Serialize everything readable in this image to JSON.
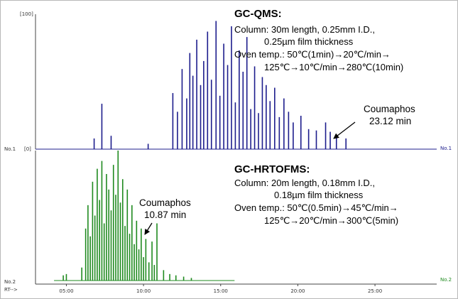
{
  "chart_data": [
    {
      "type": "line",
      "title": "GC-QMS:",
      "method_lines": [
        "Column: 30m length, 0.25mm I.D.,",
        "0.25µm film thickness",
        "Oven temp.: 50℃(1min)→20℃/min→",
        "125℃→10℃/min→280℃(10min)"
      ],
      "trace_label_left": "No.1",
      "trace_label_right": "No.1",
      "y_top_label": "[100]",
      "y_bottom_label": "[0]",
      "ylim": [
        0,
        100
      ],
      "xlim": [
        3.0,
        29.0
      ],
      "color": "#1c1c8c",
      "annotation": {
        "compound": "Coumaphos",
        "rt": "23.12 min",
        "x": 23.12
      },
      "peaks": [
        {
          "x": 6.8,
          "y": 8
        },
        {
          "x": 7.3,
          "y": 34
        },
        {
          "x": 7.9,
          "y": 10
        },
        {
          "x": 10.3,
          "y": 4
        },
        {
          "x": 11.9,
          "y": 42
        },
        {
          "x": 12.2,
          "y": 28
        },
        {
          "x": 12.5,
          "y": 60
        },
        {
          "x": 12.8,
          "y": 38
        },
        {
          "x": 13.0,
          "y": 72
        },
        {
          "x": 13.2,
          "y": 55
        },
        {
          "x": 13.45,
          "y": 82
        },
        {
          "x": 13.7,
          "y": 48
        },
        {
          "x": 13.9,
          "y": 66
        },
        {
          "x": 14.15,
          "y": 88
        },
        {
          "x": 14.4,
          "y": 52
        },
        {
          "x": 14.7,
          "y": 96
        },
        {
          "x": 14.95,
          "y": 40
        },
        {
          "x": 15.2,
          "y": 79
        },
        {
          "x": 15.45,
          "y": 63
        },
        {
          "x": 15.7,
          "y": 92
        },
        {
          "x": 15.95,
          "y": 35
        },
        {
          "x": 16.2,
          "y": 74
        },
        {
          "x": 16.45,
          "y": 58
        },
        {
          "x": 16.7,
          "y": 84
        },
        {
          "x": 16.95,
          "y": 30
        },
        {
          "x": 17.2,
          "y": 62
        },
        {
          "x": 17.45,
          "y": 27
        },
        {
          "x": 17.7,
          "y": 54
        },
        {
          "x": 17.95,
          "y": 48
        },
        {
          "x": 18.2,
          "y": 36
        },
        {
          "x": 18.5,
          "y": 46
        },
        {
          "x": 18.8,
          "y": 24
        },
        {
          "x": 19.1,
          "y": 38
        },
        {
          "x": 19.4,
          "y": 28
        },
        {
          "x": 19.7,
          "y": 20
        },
        {
          "x": 20.2,
          "y": 25
        },
        {
          "x": 20.7,
          "y": 15
        },
        {
          "x": 21.2,
          "y": 14
        },
        {
          "x": 21.8,
          "y": 20
        },
        {
          "x": 22.1,
          "y": 13
        },
        {
          "x": 22.5,
          "y": 10
        },
        {
          "x": 23.12,
          "y": 8
        }
      ]
    },
    {
      "type": "line",
      "title": "GC-HRTOFMS:",
      "method_lines": [
        "Column: 20m length, 0.18mm I.D.,",
        "0.18µm film thickness",
        "Oven temp.: 50℃(0.5min)→45℃/min→",
        "125℃→20℃/min→300℃(5min)"
      ],
      "trace_label_left": "No.2",
      "trace_label_right": "No.2",
      "xlabel": "RT-->",
      "ticks": [
        "05:00",
        "10:00",
        "15:00",
        "20:00",
        "25:00"
      ],
      "tick_values": [
        5,
        10,
        15,
        20,
        25
      ],
      "xlim": [
        3.0,
        29.0
      ],
      "color": "#1f8a1f",
      "trace_end": 15.9,
      "annotation": {
        "compound": "Coumaphos",
        "rt": "10.87 min",
        "x": 10.87
      },
      "peaks": [
        {
          "x": 4.8,
          "y": 4
        },
        {
          "x": 5.0,
          "y": 5
        },
        {
          "x": 6.0,
          "y": 10
        },
        {
          "x": 6.25,
          "y": 40
        },
        {
          "x": 6.4,
          "y": 58
        },
        {
          "x": 6.55,
          "y": 34
        },
        {
          "x": 6.7,
          "y": 76
        },
        {
          "x": 6.85,
          "y": 50
        },
        {
          "x": 7.0,
          "y": 86
        },
        {
          "x": 7.15,
          "y": 62
        },
        {
          "x": 7.3,
          "y": 92
        },
        {
          "x": 7.45,
          "y": 44
        },
        {
          "x": 7.6,
          "y": 82
        },
        {
          "x": 7.75,
          "y": 70
        },
        {
          "x": 7.9,
          "y": 54
        },
        {
          "x": 8.05,
          "y": 89
        },
        {
          "x": 8.2,
          "y": 66
        },
        {
          "x": 8.35,
          "y": 100
        },
        {
          "x": 8.5,
          "y": 60
        },
        {
          "x": 8.65,
          "y": 78
        },
        {
          "x": 8.8,
          "y": 42
        },
        {
          "x": 8.95,
          "y": 70
        },
        {
          "x": 9.1,
          "y": 36
        },
        {
          "x": 9.25,
          "y": 58
        },
        {
          "x": 9.4,
          "y": 28
        },
        {
          "x": 9.55,
          "y": 46
        },
        {
          "x": 9.7,
          "y": 24
        },
        {
          "x": 9.85,
          "y": 40
        },
        {
          "x": 10.0,
          "y": 18
        },
        {
          "x": 10.15,
          "y": 32
        },
        {
          "x": 10.35,
          "y": 14
        },
        {
          "x": 10.55,
          "y": 30
        },
        {
          "x": 10.7,
          "y": 12
        },
        {
          "x": 10.87,
          "y": 44
        },
        {
          "x": 11.3,
          "y": 8
        },
        {
          "x": 11.7,
          "y": 5
        },
        {
          "x": 12.1,
          "y": 4
        },
        {
          "x": 12.6,
          "y": 3
        },
        {
          "x": 13.1,
          "y": 2
        }
      ]
    }
  ]
}
